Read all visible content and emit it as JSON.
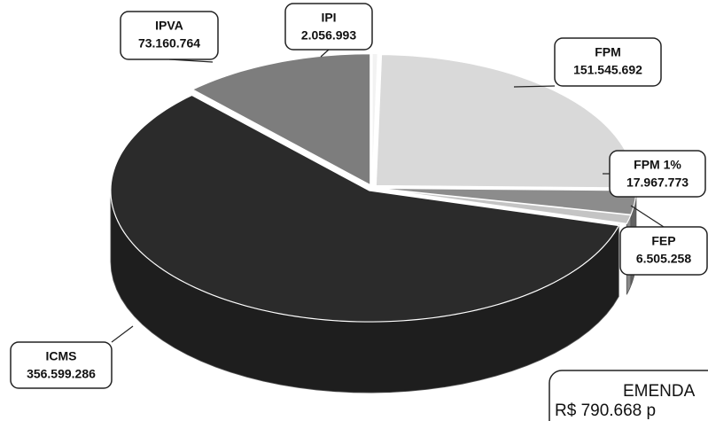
{
  "chart_data": {
    "type": "pie",
    "categories": [
      "IPI",
      "FPM",
      "FPM 1%",
      "FEP",
      "ICMS",
      "IPVA"
    ],
    "values": [
      2056993,
      151545692,
      17967773,
      6505258,
      356599286,
      73160764
    ],
    "value_labels": [
      "2.056.993",
      "151.545.692",
      "17.967.773",
      "6.505.258",
      "356.599.286",
      "73.160.764"
    ],
    "colors": [
      "#f2f2f2",
      "#d9d9d9",
      "#8c8c8c",
      "#c4c4c4",
      "#2b2b2b",
      "#7d7d7d"
    ],
    "annotations": [
      "EMENDA",
      "R$ 790.668 p"
    ]
  }
}
